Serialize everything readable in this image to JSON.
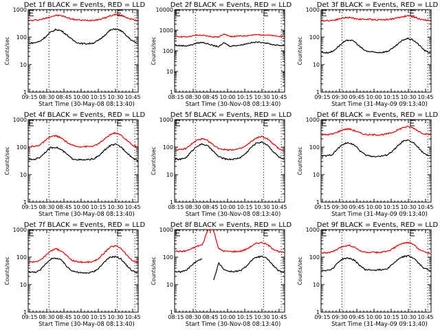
{
  "figure": {
    "layout": "3x3 grid",
    "black_color": "#000000",
    "red_color": "#e00000"
  },
  "chart_data": [
    {
      "type": "line",
      "scale": "log",
      "title": "Det 1f BLACK = Events, RED = LLD",
      "xlabel": "Start Time (30-May-08 08:13:40)",
      "ylabel": "Counts/sec",
      "xticks": [
        "09:15",
        "08:30",
        "08:45",
        "10:00",
        "10:15",
        "10:30",
        "10:45"
      ],
      "yticks": [
        "1",
        "10",
        "100",
        "1000"
      ],
      "ylim": [
        1,
        1000
      ],
      "markers_E": [
        0.0,
        0.8
      ],
      "dotted_lines": [
        0.19,
        0.81,
        0.97
      ],
      "series": [
        {
          "name": "LLD",
          "color": "red",
          "values": [
            400,
            410,
            430,
            480,
            560,
            620,
            600,
            520,
            450,
            420,
            410,
            410,
            420,
            440,
            500,
            600,
            670,
            620,
            520,
            440,
            390
          ]
        },
        {
          "name": "Events",
          "color": "black",
          "values": [
            60,
            62,
            70,
            100,
            150,
            190,
            170,
            120,
            80,
            62,
            58,
            58,
            62,
            80,
            120,
            180,
            200,
            170,
            110,
            75,
            58
          ]
        }
      ]
    },
    {
      "type": "line",
      "scale": "log",
      "title": "Det 2f BLACK = Events, RED = LLD",
      "xlabel": "Start Time (30-Nov-08 08:13:40)",
      "ylabel": "Counts/sec",
      "xticks": [
        "08:15",
        "08:30",
        "08:45",
        "10:00",
        "10:15",
        "10:30",
        "10:45"
      ],
      "yticks": [
        "1",
        "10",
        "100",
        "1000",
        "10000"
      ],
      "ylim": [
        1,
        10000
      ],
      "markers_E": [
        0.0,
        0.8
      ],
      "dotted_lines": [
        0.19,
        0.81,
        0.97
      ],
      "series": [
        {
          "name": "LLD",
          "color": "red",
          "values": [
            500,
            490,
            480,
            520,
            580,
            560,
            520,
            480,
            470,
            690,
            500,
            510,
            520,
            540,
            580,
            600,
            610,
            580,
            540,
            520,
            510
          ]
        },
        {
          "name": "Events",
          "color": "black",
          "values": [
            180,
            180,
            175,
            195,
            240,
            260,
            220,
            180,
            160,
            250,
            170,
            180,
            190,
            220,
            250,
            265,
            260,
            230,
            200,
            185,
            180
          ]
        }
      ]
    },
    {
      "type": "line",
      "scale": "log",
      "title": "Det 3f BLACK = Events, RED = LLD",
      "xlabel": "Start Time (31-May-09 09:13:40)",
      "ylabel": "Counts/sec",
      "xticks": [
        "09:15",
        "09:30",
        "09:45",
        "10:00",
        "10:15",
        "10:30",
        "10:45"
      ],
      "yticks": [
        "1",
        "10",
        "100",
        "1000"
      ],
      "ylim": [
        1,
        1000
      ],
      "markers_E": [
        0.0,
        0.8
      ],
      "dotted_lines": [
        0.19,
        0.81,
        0.97
      ],
      "series": [
        {
          "name": "LLD",
          "color": "red",
          "values": [
            400,
            400,
            410,
            450,
            500,
            520,
            480,
            450,
            440,
            440,
            430,
            430,
            440,
            460,
            500,
            560,
            600,
            540,
            460,
            420,
            400
          ]
        },
        {
          "name": "Events",
          "color": "black",
          "values": [
            28,
            27,
            30,
            45,
            65,
            80,
            70,
            45,
            32,
            29,
            28,
            28,
            30,
            38,
            55,
            80,
            90,
            75,
            50,
            32,
            26
          ]
        }
      ]
    },
    {
      "type": "line",
      "scale": "log",
      "title": "Det 4f BLACK = Events, RED = LLD",
      "xlabel": "Start Time (30-May-08 08:13:40)",
      "ylabel": "Counts/sec",
      "xticks": [
        "09:15",
        "08:30",
        "08:45",
        "10:00",
        "10:15",
        "10:30",
        "10:45"
      ],
      "yticks": [
        "1",
        "10",
        "100",
        "1000"
      ],
      "ylim": [
        1,
        1000
      ],
      "markers_E": [
        0.0,
        0.8
      ],
      "dotted_lines": [
        0.19,
        0.81,
        0.97
      ],
      "series": [
        {
          "name": "LLD",
          "color": "red",
          "values": [
            105,
            105,
            120,
            170,
            240,
            260,
            210,
            150,
            115,
            105,
            105,
            105,
            110,
            140,
            200,
            290,
            330,
            270,
            180,
            120,
            100
          ]
        },
        {
          "name": "Events",
          "color": "black",
          "values": [
            35,
            36,
            42,
            65,
            95,
            100,
            80,
            55,
            38,
            35,
            34,
            35,
            38,
            50,
            80,
            115,
            125,
            100,
            65,
            42,
            32
          ]
        }
      ]
    },
    {
      "type": "line",
      "scale": "log",
      "title": "Det 5f BLACK = Events, RED = LLD",
      "xlabel": "Start Time (30-Nov-08 08:13:40)",
      "ylabel": "Counts/sec",
      "xticks": [
        "08:15",
        "08:30",
        "08:45",
        "10:00",
        "10:15",
        "10:30",
        "10:45"
      ],
      "yticks": [
        "1",
        "10",
        "100",
        "1000"
      ],
      "ylim": [
        1,
        1000
      ],
      "markers_E": [
        0.0,
        0.8
      ],
      "dotted_lines": [
        0.19,
        0.81,
        0.97
      ],
      "series": [
        {
          "name": "LLD",
          "color": "red",
          "values": [
            80,
            80,
            90,
            130,
            180,
            200,
            170,
            120,
            90,
            82,
            80,
            82,
            88,
            110,
            160,
            220,
            240,
            200,
            130,
            90,
            75
          ]
        },
        {
          "name": "Events",
          "color": "black",
          "values": [
            36,
            36,
            42,
            70,
            110,
            130,
            110,
            70,
            45,
            38,
            36,
            37,
            42,
            60,
            100,
            145,
            150,
            120,
            70,
            45,
            34
          ]
        }
      ]
    },
    {
      "type": "line",
      "scale": "log",
      "title": "Det 6f BLACK = Events, RED = LLD",
      "xlabel": "Start Time (31-May-09 09:13:40)",
      "ylabel": "Counts/sec",
      "xticks": [
        "09:15",
        "09:30",
        "09:45",
        "10:00",
        "10:15",
        "10:30",
        "10:45"
      ],
      "yticks": [
        "1",
        "10",
        "100",
        "1000"
      ],
      "ylim": [
        1,
        1000
      ],
      "markers_E": [
        0.0,
        0.8
      ],
      "dotted_lines": [
        0.19,
        0.81,
        0.97
      ],
      "series": [
        {
          "name": "LLD",
          "color": "red",
          "values": [
            280,
            285,
            300,
            360,
            440,
            460,
            400,
            330,
            290,
            280,
            280,
            285,
            300,
            340,
            420,
            520,
            560,
            480,
            360,
            300,
            280
          ]
        },
        {
          "name": "Events",
          "color": "black",
          "values": [
            48,
            48,
            55,
            90,
            130,
            145,
            120,
            75,
            52,
            47,
            46,
            47,
            52,
            70,
            110,
            165,
            175,
            140,
            85,
            55,
            46
          ]
        }
      ]
    },
    {
      "type": "line",
      "scale": "log",
      "title": "Det 7f BLACK = Events, RED = LLD",
      "xlabel": "Start Time (30-May-08 08:13:40)",
      "ylabel": "Counts/sec",
      "xticks": [
        "09:15",
        "08:30",
        "08:45",
        "10:00",
        "10:15",
        "10:30",
        "10:45"
      ],
      "yticks": [
        "1",
        "10",
        "100",
        "1000"
      ],
      "ylim": [
        1,
        1000
      ],
      "markers_E": [
        0.0,
        0.8
      ],
      "dotted_lines": [
        0.19,
        0.81,
        0.97
      ],
      "series": [
        {
          "name": "LLD",
          "color": "red",
          "values": [
            68,
            68,
            75,
            110,
            170,
            200,
            170,
            110,
            75,
            68,
            65,
            66,
            70,
            95,
            150,
            230,
            260,
            210,
            120,
            75,
            65
          ]
        },
        {
          "name": "Events",
          "color": "black",
          "values": [
            29,
            28,
            32,
            55,
            85,
            92,
            78,
            45,
            32,
            28,
            26,
            27,
            30,
            42,
            70,
            100,
            105,
            85,
            50,
            32,
            27
          ]
        }
      ]
    },
    {
      "type": "line",
      "scale": "log",
      "title": "Det 8f BLACK = Events, RED = LLD",
      "xlabel": "Start Time (30-Nov-08 08:13:40)",
      "ylabel": "Counts/sec",
      "xticks": [
        "08:15",
        "08:30",
        "08:45",
        "10:00",
        "10:15",
        "10:30",
        "10:45"
      ],
      "yticks": [
        "1",
        "10",
        "100",
        "1000"
      ],
      "ylim": [
        1,
        1000
      ],
      "markers_E": [
        0.0,
        0.8
      ],
      "dotted_lines": [
        0.19,
        0.81,
        0.97
      ],
      "series": [
        {
          "name": "LLD",
          "color": "red",
          "values": [
            165,
            160,
            170,
            200,
            250,
            280,
            1000,
            1000,
            200,
            165,
            160,
            160,
            165,
            190,
            250,
            320,
            340,
            280,
            200,
            160,
            145
          ]
        },
        {
          "name": "Events",
          "color": "black",
          "values": [
            30,
            29,
            33,
            50,
            75,
            85,
            null,
            14,
            60,
            35,
            30,
            30,
            32,
            45,
            75,
            100,
            105,
            85,
            50,
            32,
            26
          ]
        }
      ]
    },
    {
      "type": "line",
      "scale": "log",
      "title": "Det 9f BLACK = Events, RED = LLD",
      "xlabel": "Start Time (31-May-09 09:13:40)",
      "ylabel": "Counts/sec",
      "xticks": [
        "09:15",
        "09:30",
        "09:45",
        "10:00",
        "10:15",
        "10:30",
        "10:45"
      ],
      "yticks": [
        "1",
        "10",
        "100",
        "1000"
      ],
      "ylim": [
        1,
        1000
      ],
      "markers_E": [
        0.0,
        0.8
      ],
      "dotted_lines": [
        0.19,
        0.81,
        0.97
      ],
      "series": [
        {
          "name": "LLD",
          "color": "red",
          "values": [
            145,
            145,
            155,
            200,
            250,
            270,
            230,
            170,
            150,
            148,
            148,
            150,
            160,
            200,
            260,
            320,
            340,
            280,
            190,
            150,
            140
          ]
        },
        {
          "name": "Events",
          "color": "black",
          "values": [
            34,
            33,
            38,
            65,
            88,
            92,
            78,
            50,
            35,
            34,
            34,
            35,
            38,
            55,
            80,
            105,
            110,
            90,
            55,
            38,
            33
          ]
        }
      ]
    }
  ]
}
